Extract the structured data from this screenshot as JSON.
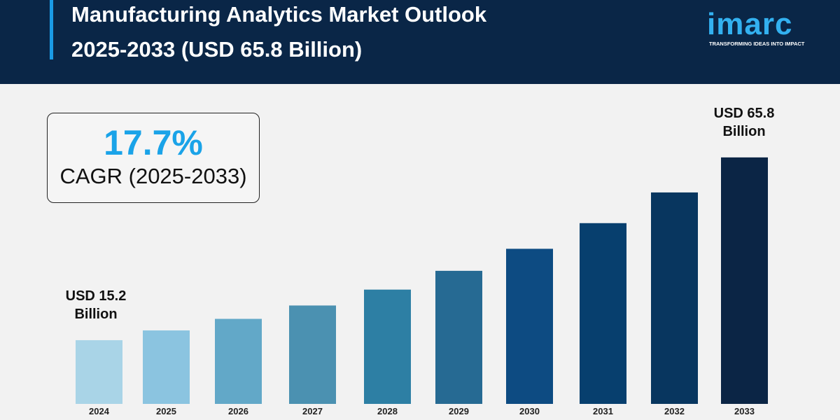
{
  "header": {
    "title_line1": "Manufacturing Analytics Market Outlook",
    "title_line2": "2025-2033 (USD 65.8 Billion)"
  },
  "logo": {
    "word": "imarc",
    "tagline": "TRANSFORMING IDEAS INTO IMPACT"
  },
  "cagr": {
    "value": "17.7%",
    "label": "CAGR (2025-2033)"
  },
  "annotations": {
    "start": "USD 15.2\nBillion",
    "end": "USD 65.8\nBillion"
  },
  "colors": {
    "header": "#0a2647",
    "accent": "#1aa3e8"
  },
  "chart_data": {
    "type": "bar",
    "categories": [
      "2024",
      "2025",
      "2026",
      "2027",
      "2028",
      "2029",
      "2030",
      "2031",
      "2032",
      "2033"
    ],
    "values": [
      15.2,
      17.9,
      21.1,
      24.8,
      29.2,
      34.4,
      40.5,
      47.6,
      56.1,
      65.8
    ],
    "colors": [
      "#a9d4e7",
      "#8bc4e0",
      "#62a8c8",
      "#4b91b1",
      "#2d7fa4",
      "#266a93",
      "#0d4b82",
      "#073f6e",
      "#08365f",
      "#0b2545"
    ],
    "title": "",
    "xlabel": "",
    "ylabel": "",
    "grid": false,
    "legend": "none"
  }
}
